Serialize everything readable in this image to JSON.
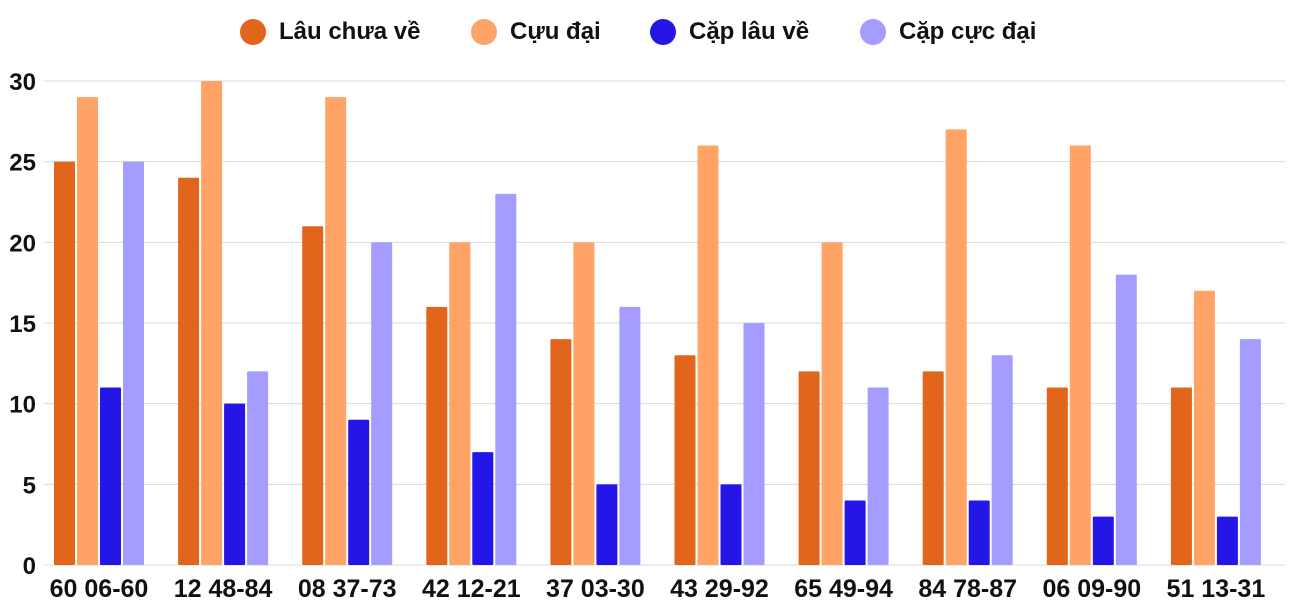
{
  "chart_data": {
    "type": "bar",
    "title": "",
    "xlabel": "",
    "ylabel": "",
    "ylim": [
      0,
      30
    ],
    "yticks": [
      0,
      5,
      10,
      15,
      20,
      25,
      30
    ],
    "grid": true,
    "legend_position": "top-center",
    "categories": [
      "60 06-60",
      "12 48-84",
      "08 37-73",
      "42 12-21",
      "37 03-30",
      "43 29-92",
      "65 49-94",
      "84 78-87",
      "06 09-90",
      "51 13-31"
    ],
    "series": [
      {
        "name": "Lâu chưa về",
        "color": "#e2651c",
        "values": [
          25,
          24,
          21,
          16,
          14,
          13,
          12,
          12,
          11,
          11
        ]
      },
      {
        "name": "Cựu đại",
        "color": "#ffa366",
        "values": [
          29,
          30,
          29,
          20,
          20,
          26,
          20,
          27,
          26,
          17
        ]
      },
      {
        "name": "Cặp lâu về",
        "color": "#2416e6",
        "values": [
          11,
          10,
          9,
          7,
          5,
          5,
          4,
          4,
          3,
          3
        ]
      },
      {
        "name": "Cặp cực đại",
        "color": "#a49cff",
        "values": [
          25,
          12,
          20,
          23,
          16,
          15,
          11,
          13,
          18,
          14
        ]
      }
    ]
  }
}
